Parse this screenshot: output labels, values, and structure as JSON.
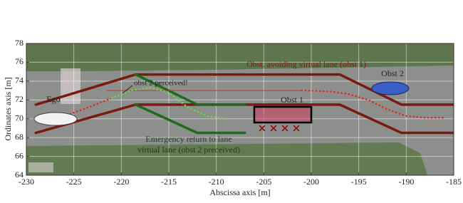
{
  "chart_data": {
    "type": "line",
    "xlabel": "Abscissa axis [m]",
    "ylabel": "Ordinates axis [m]",
    "xlim": [
      -230,
      -185
    ],
    "ylim": [
      64,
      78
    ],
    "xticks": [
      -230,
      -225,
      -220,
      -215,
      -210,
      -205,
      -200,
      -195,
      -190,
      -185
    ],
    "yticks": [
      64,
      66,
      68,
      70,
      72,
      74,
      76,
      78
    ],
    "grid": true,
    "series": [
      {
        "color": "#7a1a10",
        "width": 3.5,
        "style": "solid",
        "x": [
          -229,
          -218.5,
          -197,
          -190.5,
          -185
        ],
        "values": [
          71.5,
          74.7,
          74.7,
          71.5,
          71.5
        ]
      },
      {
        "color": "#7a1a10",
        "width": 3.5,
        "style": "solid",
        "x": [
          -229,
          -218.5,
          -197,
          -190.5,
          -185
        ],
        "values": [
          68.5,
          71.5,
          71.5,
          68.5,
          68.5
        ]
      },
      {
        "color": "#1e6b1e",
        "width": 3.5,
        "style": "solid",
        "x": [
          -218.5,
          -212,
          -207
        ],
        "values": [
          74.7,
          71.5,
          71.5
        ]
      },
      {
        "color": "#1e6b1e",
        "width": 3.5,
        "style": "solid",
        "x": [
          -218.5,
          -212,
          -207
        ],
        "values": [
          71.5,
          68.5,
          68.5
        ]
      },
      {
        "color": "#c0392b",
        "width": 1,
        "style": "solid",
        "x": [
          -221.5,
          -201
        ],
        "values": [
          73,
          73
        ]
      },
      {
        "color": "#e8201a",
        "width": 2.5,
        "style": "dotted",
        "x": [
          -228,
          -226,
          -224,
          -222,
          -221
        ],
        "values": [
          70,
          70.3,
          71,
          71.8,
          72.2
        ]
      },
      {
        "color": "#66e040",
        "width": 2.5,
        "style": "dotted",
        "x": [
          -221,
          -219,
          -217,
          -215,
          -213,
          -211,
          -209
        ],
        "values": [
          72.2,
          73,
          73.3,
          72.8,
          71.2,
          70.3,
          70
        ]
      },
      {
        "color": "#e8201a",
        "width": 2.5,
        "style": "dotted",
        "x": [
          -201,
          -198,
          -196,
          -194,
          -192,
          -190,
          -188,
          -186
        ],
        "values": [
          73,
          72.9,
          72.6,
          72,
          71,
          70.3,
          70.1,
          70.1
        ]
      }
    ],
    "annotations": [
      "Obst. avoiding virtual lane (obst 1)",
      "Obst 2",
      "obst 2 perceived!",
      "Ego",
      "Obst 1",
      "Emergency return to lane",
      "virtual lane (obst 2 preceived)"
    ]
  }
}
